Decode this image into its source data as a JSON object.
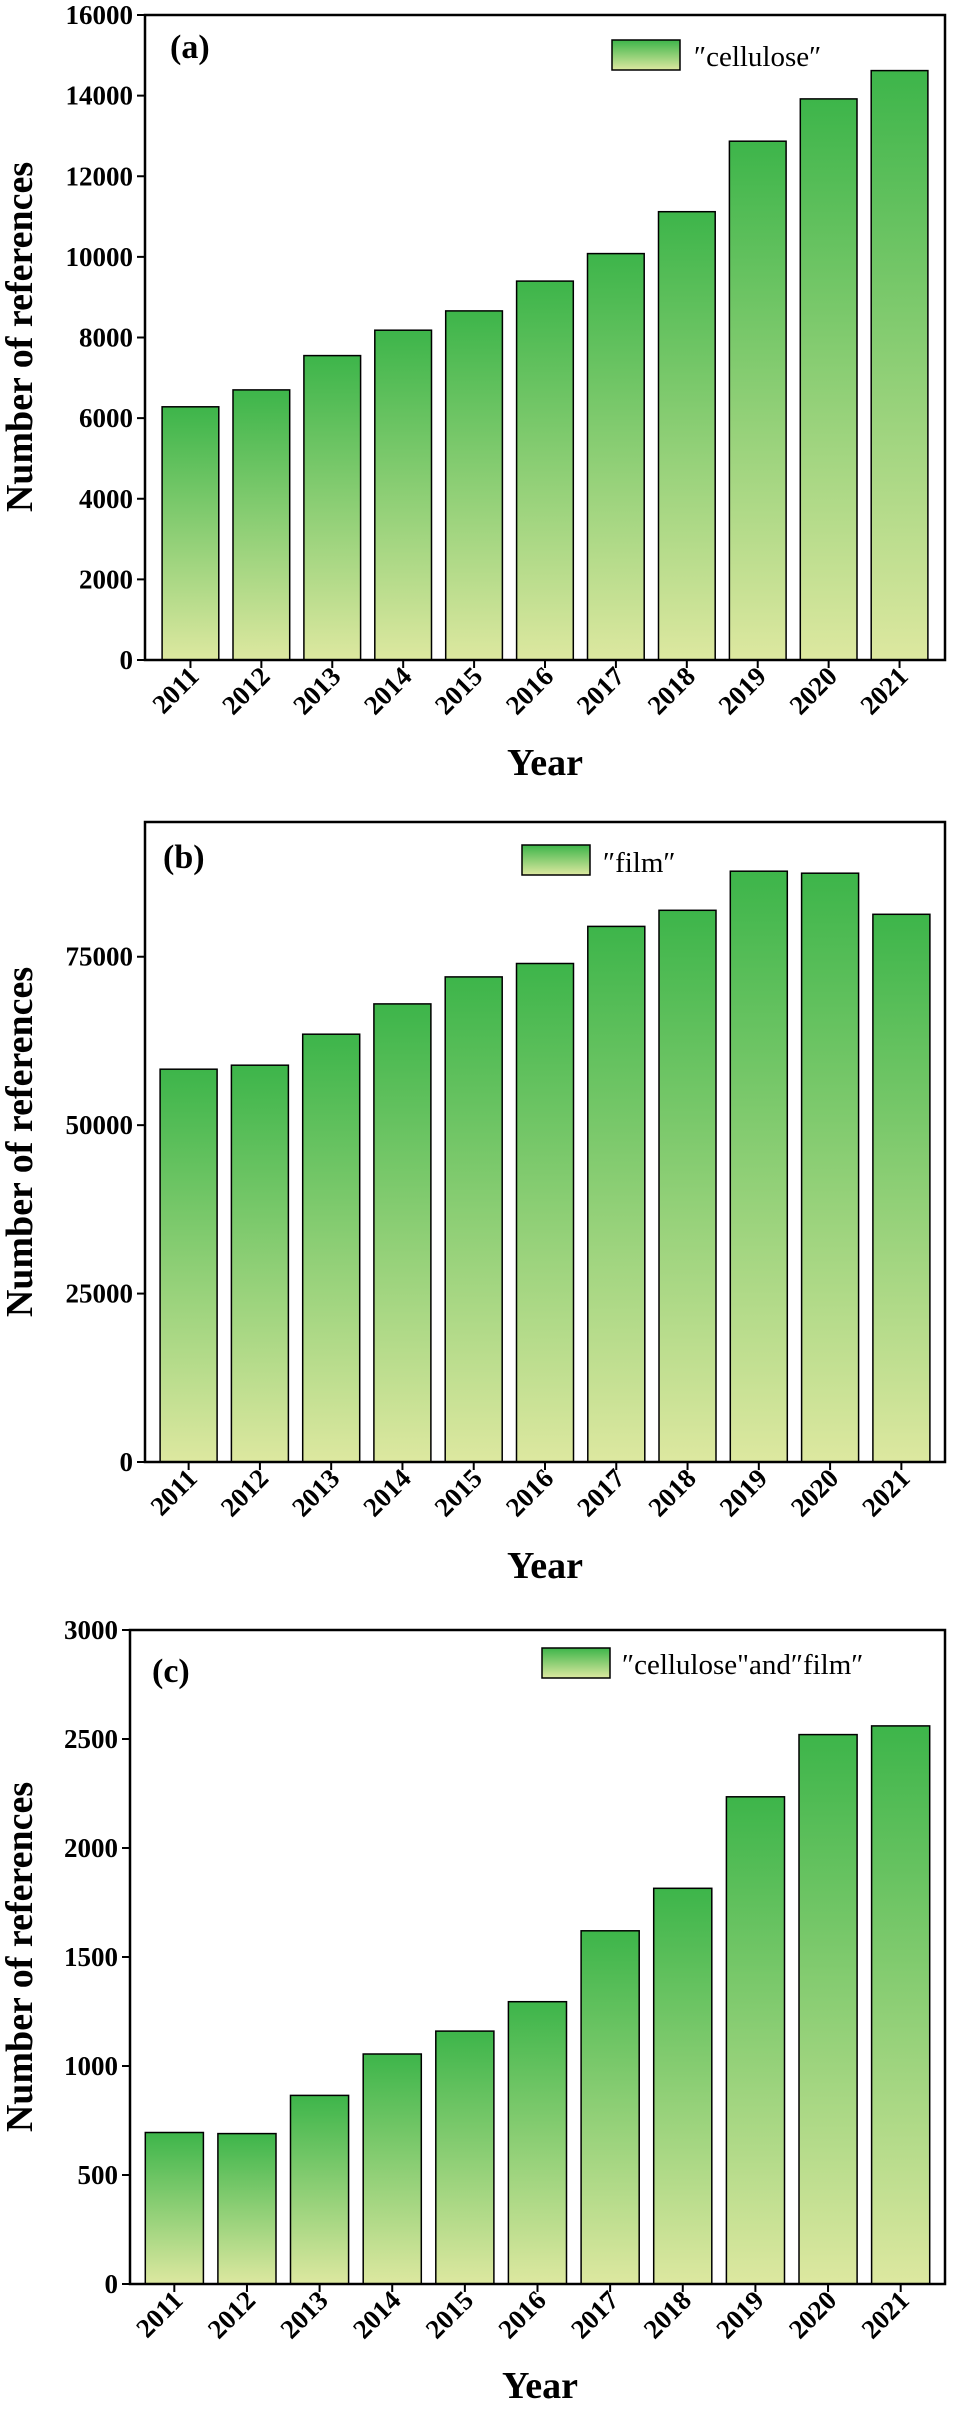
{
  "colors": {
    "bar_top": "#3db54a",
    "bar_bottom": "#dde8a0",
    "bar_stroke": "#000000",
    "axis": "#000000"
  },
  "chart_data": [
    {
      "type": "bar",
      "panel_label": "(a)",
      "categories": [
        "2011",
        "2012",
        "2013",
        "2014",
        "2015",
        "2016",
        "2017",
        "2018",
        "2019",
        "2020",
        "2021"
      ],
      "series": [
        {
          "name": "″cellulose″",
          "values": [
            6280,
            6700,
            7550,
            8180,
            8660,
            9400,
            10080,
            11120,
            12870,
            13920,
            14620
          ]
        }
      ],
      "xlabel": "Year",
      "ylabel": "Number of references",
      "ylim": [
        0,
        16000
      ],
      "yticks": [
        0,
        2000,
        4000,
        6000,
        8000,
        10000,
        12000,
        14000,
        16000
      ],
      "legend_position": "top-right",
      "grid": false
    },
    {
      "type": "bar",
      "panel_label": "(b)",
      "categories": [
        "2011",
        "2012",
        "2013",
        "2014",
        "2015",
        "2016",
        "2017",
        "2018",
        "2019",
        "2020",
        "2021"
      ],
      "series": [
        {
          "name": "″film″",
          "values": [
            58300,
            58900,
            63500,
            68000,
            72000,
            74000,
            79500,
            81900,
            87700,
            87400,
            81300
          ]
        }
      ],
      "xlabel": "Year",
      "ylabel": "Number of references",
      "ylim": [
        0,
        95000
      ],
      "yticks": [
        0,
        25000,
        50000,
        75000
      ],
      "legend_position": "top-center",
      "grid": false
    },
    {
      "type": "bar",
      "panel_label": "(c)",
      "categories": [
        "2011",
        "2012",
        "2013",
        "2014",
        "2015",
        "2016",
        "2017",
        "2018",
        "2019",
        "2020",
        "2021"
      ],
      "series": [
        {
          "name": "″cellulose\"and″film″",
          "values": [
            695,
            690,
            865,
            1055,
            1160,
            1295,
            1620,
            1815,
            2235,
            2520,
            2560
          ]
        }
      ],
      "xlabel": "Year",
      "ylabel": "Number of references",
      "ylim": [
        0,
        3000
      ],
      "yticks": [
        0,
        500,
        1000,
        1500,
        2000,
        2500,
        3000
      ],
      "legend_position": "top-right",
      "grid": false
    }
  ]
}
